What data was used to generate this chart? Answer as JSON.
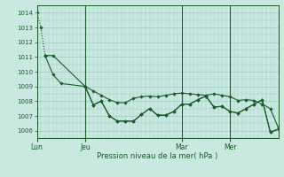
{
  "bg_color": "#c8e8e0",
  "grid_color": "#a0ccc4",
  "line_color": "#1a5c2a",
  "xlabel": "Pression niveau de la mer( hPa )",
  "ylim": [
    1005.5,
    1014.5
  ],
  "yticks": [
    1006,
    1007,
    1008,
    1009,
    1010,
    1011,
    1012,
    1013,
    1014
  ],
  "day_labels": [
    "Lun",
    "Jeu",
    "Mar",
    "Mer"
  ],
  "day_ticks": [
    0,
    12,
    36,
    48
  ],
  "xlim": [
    0,
    60
  ],
  "num_x_minor": 60,
  "line1_x": [
    0,
    1,
    2,
    4,
    12,
    14,
    16,
    18,
    20,
    22,
    24,
    26,
    28,
    30,
    32,
    34,
    36,
    38,
    40,
    42,
    44,
    46,
    48,
    50,
    52,
    54,
    56,
    58,
    60
  ],
  "line1_y": [
    1014.0,
    1013.0,
    1011.1,
    1011.1,
    1009.0,
    1008.7,
    1008.4,
    1008.1,
    1007.9,
    1007.9,
    1008.2,
    1008.3,
    1008.35,
    1008.3,
    1008.4,
    1008.5,
    1008.55,
    1008.5,
    1008.45,
    1008.4,
    1008.5,
    1008.4,
    1008.3,
    1008.05,
    1008.1,
    1008.05,
    1007.8,
    1007.5,
    1006.2
  ],
  "line1_dotted_to": 2,
  "line2_x": [
    2,
    4,
    6,
    12,
    14,
    16,
    18,
    20,
    22,
    24,
    26,
    28,
    30,
    32,
    34,
    36,
    38,
    40,
    42,
    44,
    46,
    48,
    50,
    52,
    54,
    56,
    58,
    60
  ],
  "line2_y": [
    1011.1,
    1009.8,
    1009.2,
    1009.0,
    1007.75,
    1008.0,
    1007.0,
    1006.65,
    1006.65,
    1006.65,
    1007.1,
    1007.5,
    1007.05,
    1007.05,
    1007.3,
    1007.8,
    1007.8,
    1008.1,
    1008.35,
    1007.6,
    1007.65,
    1007.3,
    1007.2,
    1007.5,
    1007.8,
    1008.1,
    1005.9,
    1006.1
  ],
  "line3_x": [
    12,
    14,
    16,
    18,
    20,
    22,
    24,
    26,
    28,
    30,
    32,
    34,
    36,
    38,
    40,
    42,
    44,
    46,
    48,
    50,
    52,
    54,
    56,
    58,
    60
  ],
  "line3_y": [
    1009.0,
    1007.75,
    1008.0,
    1007.0,
    1006.65,
    1006.65,
    1006.65,
    1007.1,
    1007.5,
    1007.05,
    1007.05,
    1007.3,
    1007.8,
    1007.8,
    1008.1,
    1008.35,
    1007.6,
    1007.65,
    1007.3,
    1007.2,
    1007.5,
    1007.8,
    1008.1,
    1005.9,
    1006.1
  ]
}
